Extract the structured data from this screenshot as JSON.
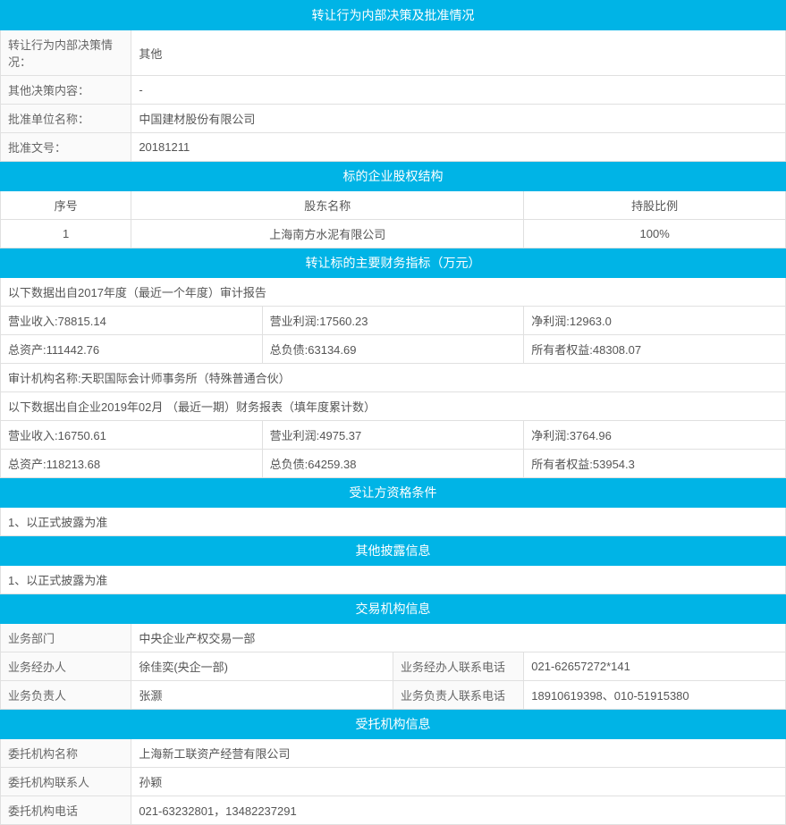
{
  "colors": {
    "header_bg": "#00b4e6",
    "header_text": "#ffffff",
    "border": "#e0e0e0",
    "text": "#555555",
    "label_bg": "#fafafa"
  },
  "sections": {
    "s1": {
      "title": "转让行为内部决策及批准情况"
    },
    "s2": {
      "title": "标的企业股权结构"
    },
    "s3": {
      "title": "转让标的主要财务指标（万元）"
    },
    "s4": {
      "title": "受让方资格条件"
    },
    "s5": {
      "title": "其他披露信息"
    },
    "s6": {
      "title": "交易机构信息"
    },
    "s7": {
      "title": "受托机构信息"
    }
  },
  "approval": {
    "decision_label": "转让行为内部决策情况：",
    "decision_value": "其他",
    "other_content_label": "其他决策内容：",
    "other_content_value": "-",
    "approve_unit_label": "批准单位名称：",
    "approve_unit_value": "中国建材股份有限公司",
    "approve_doc_label": "批准文号：",
    "approve_doc_value": "20181211"
  },
  "equity": {
    "col_seq": "序号",
    "col_name": "股东名称",
    "col_ratio": "持股比例",
    "rows": [
      {
        "seq": "1",
        "name": "上海南方水泥有限公司",
        "ratio": "100%"
      }
    ]
  },
  "financial": {
    "note1": "以下数据出自2017年度（最近一个年度）审计报告",
    "rev_label": "营业收入:",
    "rev_2017": "78815.14",
    "op_profit_label": "营业利润:",
    "op_profit_2017": "17560.23",
    "net_profit_label": "净利润:",
    "net_profit_2017": "12963.0",
    "assets_label": "总资产:",
    "assets_2017": "111442.76",
    "liab_label": "总负债:",
    "liab_2017": "63134.69",
    "equity_label": "所有者权益:",
    "equity_2017": "48308.07",
    "audit_firm_label": "审计机构名称:",
    "audit_firm": "天职国际会计师事务所（特殊普通合伙）",
    "note2": "以下数据出自企业2019年02月 （最近一期）财务报表（填年度累计数）",
    "rev_2019": "16750.61",
    "op_profit_2019": "4975.37",
    "net_profit_2019": "3764.96",
    "assets_2019": "118213.68",
    "liab_2019": "64259.38",
    "equity_2019": "53954.3"
  },
  "transferee": {
    "note": "1、以正式披露为准"
  },
  "other_disclosure": {
    "note": "1、以正式披露为准"
  },
  "trade_org": {
    "dept_label": "业务部门",
    "dept_value": "中央企业产权交易一部",
    "handler_label": "业务经办人",
    "handler_value": "徐佳奕(央企一部)",
    "handler_phone_label": "业务经办人联系电话",
    "handler_phone_value": "021-62657272*141",
    "leader_label": "业务负责人",
    "leader_value": "张灏",
    "leader_phone_label": "业务负责人联系电话",
    "leader_phone_value": "18910619398、010-51915380"
  },
  "trustee": {
    "org_label": "委托机构名称",
    "org_value": "上海新工联资产经营有限公司",
    "contact_label": "委托机构联系人",
    "contact_value": "孙颖",
    "phone_label": "委托机构电话",
    "phone_value": "021-63232801，13482237291"
  }
}
